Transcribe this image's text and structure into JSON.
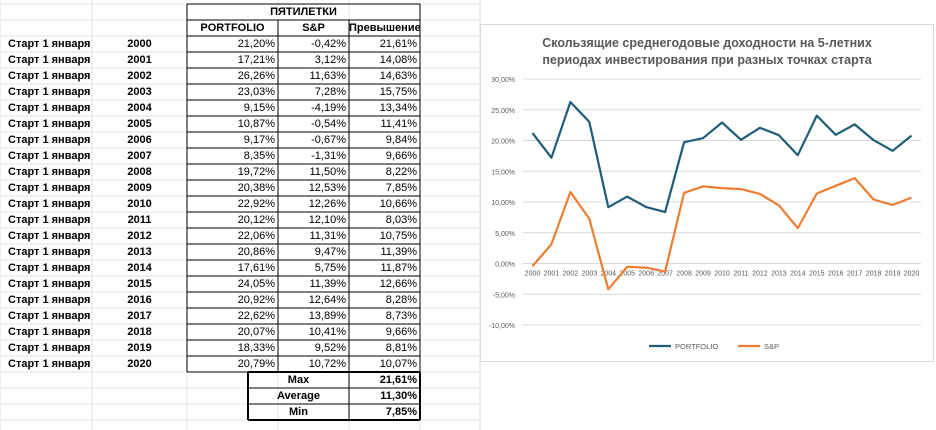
{
  "table": {
    "section_header": "ПЯТИЛЕТКИ",
    "headers": [
      "PORTFOLIO",
      "S&P",
      "Превышение"
    ],
    "row_label": "Старт 1 января",
    "rows": [
      {
        "year": "2000",
        "portfolio": "21,20%",
        "sp": "-0,42%",
        "excess": "21,61%"
      },
      {
        "year": "2001",
        "portfolio": "17,21%",
        "sp": "3,12%",
        "excess": "14,08%"
      },
      {
        "year": "2002",
        "portfolio": "26,26%",
        "sp": "11,63%",
        "excess": "14,63%"
      },
      {
        "year": "2003",
        "portfolio": "23,03%",
        "sp": "7,28%",
        "excess": "15,75%"
      },
      {
        "year": "2004",
        "portfolio": "9,15%",
        "sp": "-4,19%",
        "excess": "13,34%"
      },
      {
        "year": "2005",
        "portfolio": "10,87%",
        "sp": "-0,54%",
        "excess": "11,41%"
      },
      {
        "year": "2006",
        "portfolio": "9,17%",
        "sp": "-0,67%",
        "excess": "9,84%"
      },
      {
        "year": "2007",
        "portfolio": "8,35%",
        "sp": "-1,31%",
        "excess": "9,66%"
      },
      {
        "year": "2008",
        "portfolio": "19,72%",
        "sp": "11,50%",
        "excess": "8,22%"
      },
      {
        "year": "2009",
        "portfolio": "20,38%",
        "sp": "12,53%",
        "excess": "7,85%"
      },
      {
        "year": "2010",
        "portfolio": "22,92%",
        "sp": "12,26%",
        "excess": "10,66%"
      },
      {
        "year": "2011",
        "portfolio": "20,12%",
        "sp": "12,10%",
        "excess": "8,03%"
      },
      {
        "year": "2012",
        "portfolio": "22,06%",
        "sp": "11,31%",
        "excess": "10,75%"
      },
      {
        "year": "2013",
        "portfolio": "20,86%",
        "sp": "9,47%",
        "excess": "11,39%"
      },
      {
        "year": "2014",
        "portfolio": "17,61%",
        "sp": "5,75%",
        "excess": "11,87%"
      },
      {
        "year": "2015",
        "portfolio": "24,05%",
        "sp": "11,39%",
        "excess": "12,66%"
      },
      {
        "year": "2016",
        "portfolio": "20,92%",
        "sp": "12,64%",
        "excess": "8,28%"
      },
      {
        "year": "2017",
        "portfolio": "22,62%",
        "sp": "13,89%",
        "excess": "8,73%"
      },
      {
        "year": "2018",
        "portfolio": "20,07%",
        "sp": "10,41%",
        "excess": "9,66%"
      },
      {
        "year": "2019",
        "portfolio": "18,33%",
        "sp": "9,52%",
        "excess": "8,81%"
      },
      {
        "year": "2020",
        "portfolio": "20,79%",
        "sp": "10,72%",
        "excess": "10,07%"
      }
    ],
    "summary": [
      {
        "label": "Max",
        "value": "21,61%"
      },
      {
        "label": "Average",
        "value": "11,30%"
      },
      {
        "label": "Min",
        "value": "7,85%"
      }
    ]
  },
  "chart_data": {
    "type": "line",
    "title": [
      "Скользящие среднегодовые доходности на 5-летних",
      "периодах инвестирования при разных точках старта"
    ],
    "x": [
      "2000",
      "2001",
      "2002",
      "2003",
      "2004",
      "2005",
      "2006",
      "2007",
      "2008",
      "2009",
      "2010",
      "2011",
      "2012",
      "2013",
      "2014",
      "2015",
      "2016",
      "2017",
      "2018",
      "2019",
      "2020"
    ],
    "y_ticks": [
      {
        "value": 30,
        "label": "30,00%"
      },
      {
        "value": 25,
        "label": "25,00%"
      },
      {
        "value": 20,
        "label": "20,00%"
      },
      {
        "value": 15,
        "label": "15,00%"
      },
      {
        "value": 10,
        "label": "10,00%"
      },
      {
        "value": 5,
        "label": "5,00%"
      },
      {
        "value": 0,
        "label": "0,00%"
      },
      {
        "value": -5,
        "label": "-5,00%"
      },
      {
        "value": -10,
        "label": "-10,00%"
      }
    ],
    "ylim": [
      -10,
      30
    ],
    "grid": true,
    "legend_position": "bottom",
    "series": [
      {
        "name": "PORTFOLIO",
        "color": "#1f5c7a",
        "values": [
          21.2,
          17.21,
          26.26,
          23.03,
          9.15,
          10.87,
          9.17,
          8.35,
          19.72,
          20.38,
          22.92,
          20.12,
          22.06,
          20.86,
          17.61,
          24.05,
          20.92,
          22.62,
          20.07,
          18.33,
          20.79
        ]
      },
      {
        "name": "S&P",
        "color": "#ed7d31",
        "values": [
          -0.42,
          3.12,
          11.63,
          7.28,
          -4.19,
          -0.54,
          -0.67,
          -1.31,
          11.5,
          12.53,
          12.26,
          12.1,
          11.31,
          9.47,
          5.75,
          11.39,
          12.64,
          13.89,
          10.41,
          9.52,
          10.72
        ]
      }
    ]
  }
}
